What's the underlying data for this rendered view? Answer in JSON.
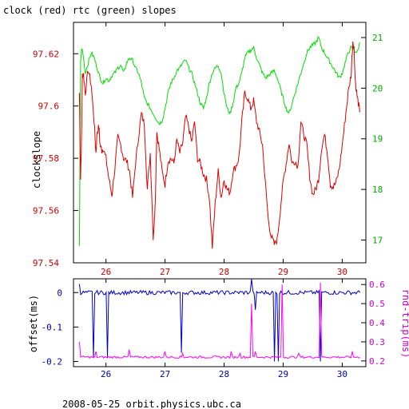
{
  "chart_data": [
    {
      "type": "line",
      "title": "clock (red) rtc (green) slopes",
      "ylabel": "clockslope",
      "xlim": [
        25.45,
        30.4
      ],
      "x_ticks": [
        26,
        27,
        28,
        29,
        30
      ],
      "x_tick_labels": [
        "26",
        "27",
        "28",
        "29",
        "30"
      ],
      "y_left": {
        "lim": [
          97.54,
          97.632
        ],
        "ticks": [
          97.54,
          97.56,
          97.58,
          97.6,
          97.62
        ],
        "tick_labels": [
          "97.54",
          "97.56",
          "97.58",
          "97.6",
          "97.62"
        ]
      },
      "y_right": {
        "lim": [
          16.55,
          21.3
        ],
        "ticks": [
          17,
          18,
          19,
          20,
          21
        ],
        "tick_labels": [
          "17",
          "18",
          "19",
          "20",
          "21"
        ]
      },
      "colors": {
        "red": "#dd0000",
        "green": "#00dd00",
        "frame": "#000000"
      },
      "series": [
        {
          "color": "red",
          "axis": "left",
          "x": [
            25.55,
            25.57,
            25.59,
            25.6,
            25.62,
            25.65,
            25.7,
            25.75,
            25.8,
            25.83,
            25.85,
            25.88,
            25.9,
            25.93,
            25.95,
            26.0,
            26.05,
            26.1,
            26.15,
            26.2,
            26.25,
            26.3,
            26.35,
            26.4,
            26.45,
            26.5,
            26.55,
            26.6,
            26.65,
            26.7,
            26.75,
            26.8,
            26.82,
            26.84,
            26.86,
            26.9,
            26.95,
            27.0,
            27.05,
            27.1,
            27.15,
            27.2,
            27.25,
            27.3,
            27.35,
            27.4,
            27.45,
            27.5,
            27.55,
            27.6,
            27.65,
            27.7,
            27.75,
            27.8,
            27.85,
            27.9,
            27.95,
            28.0,
            28.05,
            28.1,
            28.15,
            28.2,
            28.25,
            28.3,
            28.35,
            28.4,
            28.45,
            28.5,
            28.55,
            28.6,
            28.65,
            28.7,
            28.75,
            28.8,
            28.85,
            28.9,
            28.95,
            29.0,
            29.05,
            29.1,
            29.15,
            29.2,
            29.25,
            29.3,
            29.35,
            29.4,
            29.45,
            29.5,
            29.55,
            29.6,
            29.65,
            29.7,
            29.75,
            29.8,
            29.85,
            29.9,
            29.95,
            30.0,
            30.05,
            30.1,
            30.15,
            30.18,
            30.2,
            30.22,
            30.25,
            30.28,
            30.3
          ],
          "y": [
            97.605,
            97.572,
            97.592,
            97.612,
            97.612,
            97.605,
            97.614,
            97.608,
            97.594,
            97.582,
            97.59,
            97.592,
            97.585,
            97.583,
            97.584,
            97.58,
            97.572,
            97.566,
            97.576,
            97.588,
            97.585,
            97.58,
            97.579,
            97.575,
            97.565,
            97.578,
            97.588,
            97.597,
            97.593,
            97.568,
            97.582,
            97.55,
            97.556,
            97.568,
            97.59,
            97.584,
            97.575,
            97.57,
            97.579,
            97.58,
            97.578,
            97.587,
            97.582,
            97.586,
            97.596,
            97.592,
            97.586,
            97.594,
            97.58,
            97.578,
            97.574,
            97.572,
            97.565,
            97.546,
            97.563,
            97.575,
            97.565,
            97.572,
            97.568,
            97.567,
            97.575,
            97.577,
            97.58,
            97.594,
            97.605,
            97.603,
            97.599,
            97.602,
            97.594,
            97.59,
            97.585,
            97.57,
            97.556,
            97.55,
            97.547,
            97.549,
            97.56,
            97.571,
            97.578,
            97.586,
            97.578,
            97.579,
            97.577,
            97.594,
            97.589,
            97.585,
            97.573,
            97.566,
            97.568,
            97.572,
            97.584,
            97.589,
            97.582,
            97.57,
            97.569,
            97.571,
            97.576,
            97.585,
            97.595,
            97.605,
            97.612,
            97.625,
            97.622,
            97.61,
            97.604,
            97.6,
            97.598
          ]
        },
        {
          "color": "green",
          "axis": "right",
          "x": [
            25.55,
            25.57,
            25.59,
            25.62,
            25.65,
            25.7,
            25.75,
            25.8,
            25.85,
            25.9,
            25.95,
            26.0,
            26.05,
            26.1,
            26.15,
            26.2,
            26.25,
            26.3,
            26.35,
            26.4,
            26.45,
            26.5,
            26.55,
            26.6,
            26.65,
            26.7,
            26.75,
            26.8,
            26.85,
            26.9,
            26.95,
            27.0,
            27.05,
            27.1,
            27.15,
            27.2,
            27.25,
            27.3,
            27.35,
            27.4,
            27.45,
            27.5,
            27.55,
            27.6,
            27.65,
            27.7,
            27.75,
            27.8,
            27.85,
            27.9,
            27.95,
            28.0,
            28.05,
            28.1,
            28.15,
            28.2,
            28.25,
            28.3,
            28.35,
            28.4,
            28.45,
            28.5,
            28.55,
            28.6,
            28.65,
            28.7,
            28.75,
            28.8,
            28.85,
            28.9,
            28.95,
            29.0,
            29.05,
            29.1,
            29.15,
            29.2,
            29.25,
            29.3,
            29.35,
            29.4,
            29.45,
            29.5,
            29.55,
            29.6,
            29.65,
            29.7,
            29.75,
            29.8,
            29.85,
            29.9,
            29.95,
            30.0,
            30.05,
            30.1,
            30.15,
            30.2,
            30.25,
            30.3
          ],
          "y": [
            16.9,
            20.5,
            20.8,
            20.6,
            20.3,
            20.5,
            20.7,
            20.6,
            20.4,
            20.2,
            20.1,
            20.2,
            20.15,
            20.25,
            20.3,
            20.4,
            20.45,
            20.3,
            20.5,
            20.6,
            20.55,
            20.4,
            20.3,
            20.1,
            19.8,
            19.7,
            19.6,
            19.5,
            19.4,
            19.3,
            19.35,
            19.6,
            19.9,
            20.1,
            20.2,
            20.35,
            20.4,
            20.5,
            20.55,
            20.4,
            20.3,
            20.1,
            19.9,
            19.7,
            19.6,
            19.8,
            20.1,
            20.3,
            20.4,
            20.45,
            20.3,
            19.9,
            19.6,
            19.5,
            19.7,
            20.0,
            20.1,
            20.3,
            20.6,
            20.7,
            20.75,
            20.8,
            20.6,
            20.45,
            20.3,
            20.2,
            20.25,
            20.3,
            20.35,
            20.2,
            20.0,
            19.8,
            19.6,
            19.5,
            19.7,
            19.9,
            20.1,
            20.3,
            20.5,
            20.7,
            20.8,
            20.85,
            20.9,
            21.0,
            20.8,
            20.7,
            20.6,
            20.5,
            20.4,
            20.3,
            20.2,
            20.3,
            20.5,
            20.7,
            20.8,
            20.75,
            20.7,
            20.9
          ]
        }
      ]
    },
    {
      "type": "line",
      "ylabel_left": "offset(ms)",
      "ylabel_right": "rnd-trip(ms)",
      "xlim": [
        25.45,
        30.4
      ],
      "x_ticks": [
        26,
        27,
        28,
        29,
        30
      ],
      "x_tick_labels": [
        "26",
        "27",
        "28",
        "29",
        "30"
      ],
      "y_left": {
        "lim": [
          -0.215,
          0.04
        ],
        "ticks": [
          0,
          -0.1,
          -0.2
        ],
        "tick_labels": [
          "0",
          "-0.1",
          "-0.2"
        ]
      },
      "y_right": {
        "lim": [
          0.17,
          0.63
        ],
        "ticks": [
          0.2,
          0.3,
          0.4,
          0.5,
          0.6
        ],
        "tick_labels": [
          "0.2",
          "0.3",
          "0.4",
          "0.5",
          "0.6"
        ]
      },
      "colors": {
        "blue": "#0000cc",
        "magenta": "#ff00ff"
      },
      "series": [
        {
          "color": "blue",
          "axis": "left",
          "baseline": 0.0,
          "spikes": [
            {
              "x": 25.56,
              "y": 0.025
            },
            {
              "x": 25.78,
              "y": -0.19
            },
            {
              "x": 26.03,
              "y": -0.19
            },
            {
              "x": 27.27,
              "y": -0.175
            },
            {
              "x": 28.47,
              "y": 0.04
            },
            {
              "x": 28.52,
              "y": -0.05
            },
            {
              "x": 28.85,
              "y": -0.2
            },
            {
              "x": 28.92,
              "y": -0.2
            },
            {
              "x": 29.62,
              "y": -0.2
            }
          ]
        },
        {
          "color": "magenta",
          "axis": "right",
          "baseline": 0.22,
          "spikes": [
            {
              "x": 25.55,
              "y": 0.3
            },
            {
              "x": 25.82,
              "y": 0.25
            },
            {
              "x": 26.4,
              "y": 0.26
            },
            {
              "x": 27.0,
              "y": 0.25
            },
            {
              "x": 27.3,
              "y": 0.24
            },
            {
              "x": 28.12,
              "y": 0.25
            },
            {
              "x": 28.27,
              "y": 0.24
            },
            {
              "x": 28.47,
              "y": 0.5
            },
            {
              "x": 28.53,
              "y": 0.25
            },
            {
              "x": 28.98,
              "y": 0.6
            },
            {
              "x": 29.26,
              "y": 0.24
            },
            {
              "x": 29.62,
              "y": 0.61
            },
            {
              "x": 30.18,
              "y": 0.25
            }
          ]
        }
      ]
    }
  ],
  "footer": "2008-05-25  orbit.physics.ubc.ca"
}
